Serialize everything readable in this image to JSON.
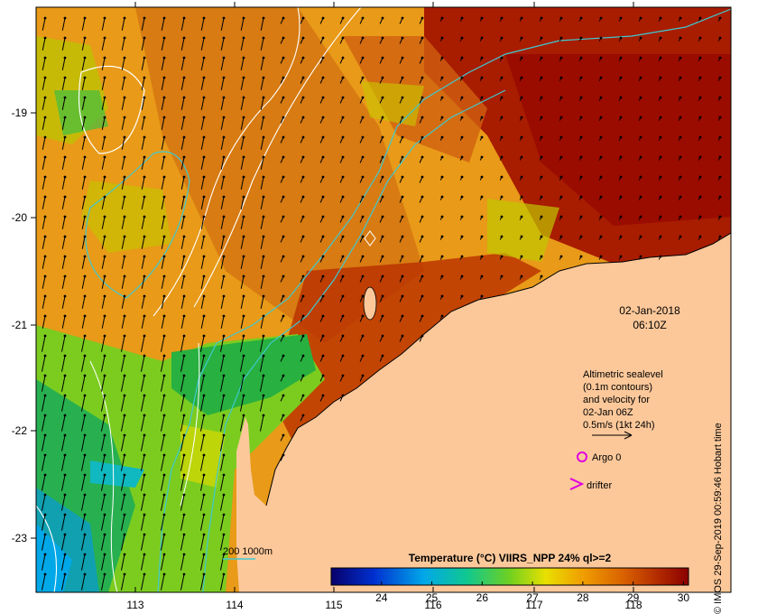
{
  "map": {
    "date_line1": "02-Jan-2018",
    "date_line2": "06:10Z",
    "x_ticks": [
      "113",
      "114",
      "115",
      "116",
      "117",
      "118"
    ],
    "y_ticks": [
      "-19",
      "-20",
      "-21",
      "-22",
      "-23"
    ],
    "annotation": {
      "line1": "Altimetric sealevel",
      "line2": "(0.1m contours)",
      "line3": "and velocity for",
      "line4": "02-Jan 06Z",
      "line5": "0.5m/s (1kt 24h)"
    },
    "legend": {
      "argo_label": "Argo 0",
      "drifter_label": "drifter",
      "argo_color": "#e000e0",
      "drifter_color": "#e000e0"
    },
    "isobath_label": "200  1000m",
    "isobath_color": "#40c8d0",
    "colorbar": {
      "title": "Temperature (°C) VIIRS_NPP 24% ql>=2",
      "ticks": [
        "24",
        "25",
        "26",
        "27",
        "28",
        "29",
        "30"
      ],
      "min": 23.0,
      "max": 30.1
    },
    "land_color": "#fcc89a",
    "credit": "© IMOS 29-Sep-2019 00:59:46 Hobart time"
  }
}
